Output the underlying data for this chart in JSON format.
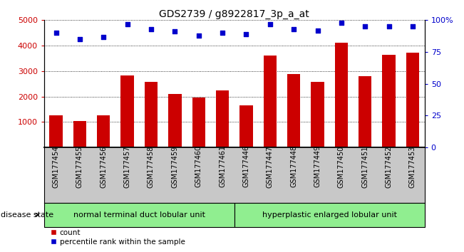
{
  "title": "GDS2739 / g8922817_3p_a_at",
  "categories": [
    "GSM177454",
    "GSM177455",
    "GSM177456",
    "GSM177457",
    "GSM177458",
    "GSM177459",
    "GSM177460",
    "GSM177461",
    "GSM177446",
    "GSM177447",
    "GSM177448",
    "GSM177449",
    "GSM177450",
    "GSM177451",
    "GSM177452",
    "GSM177453"
  ],
  "counts": [
    1270,
    1030,
    1270,
    2820,
    2570,
    2100,
    1960,
    2230,
    1660,
    3600,
    2870,
    2580,
    4100,
    2790,
    3630,
    3730
  ],
  "percentiles": [
    90,
    85,
    87,
    97,
    93,
    91,
    88,
    90,
    89,
    97,
    93,
    92,
    98,
    95,
    95,
    95
  ],
  "group1_label": "normal terminal duct lobular unit",
  "group2_label": "hyperplastic enlarged lobular unit",
  "group1_count": 8,
  "group2_count": 8,
  "bar_color": "#cc0000",
  "dot_color": "#0000cc",
  "ylim_left": [
    0,
    5000
  ],
  "ylim_right": [
    0,
    100
  ],
  "yticks_left": [
    1000,
    2000,
    3000,
    4000,
    5000
  ],
  "yticks_right": [
    0,
    25,
    50,
    75,
    100
  ],
  "ytick_right_labels": [
    "0",
    "25",
    "50",
    "75",
    "100%"
  ],
  "legend_count_label": "count",
  "legend_pct_label": "percentile rank within the sample",
  "bar_width": 0.55,
  "group_bg_color": "#90EE90",
  "tick_area_color": "#c8c8c8",
  "disease_state_label": "disease state"
}
